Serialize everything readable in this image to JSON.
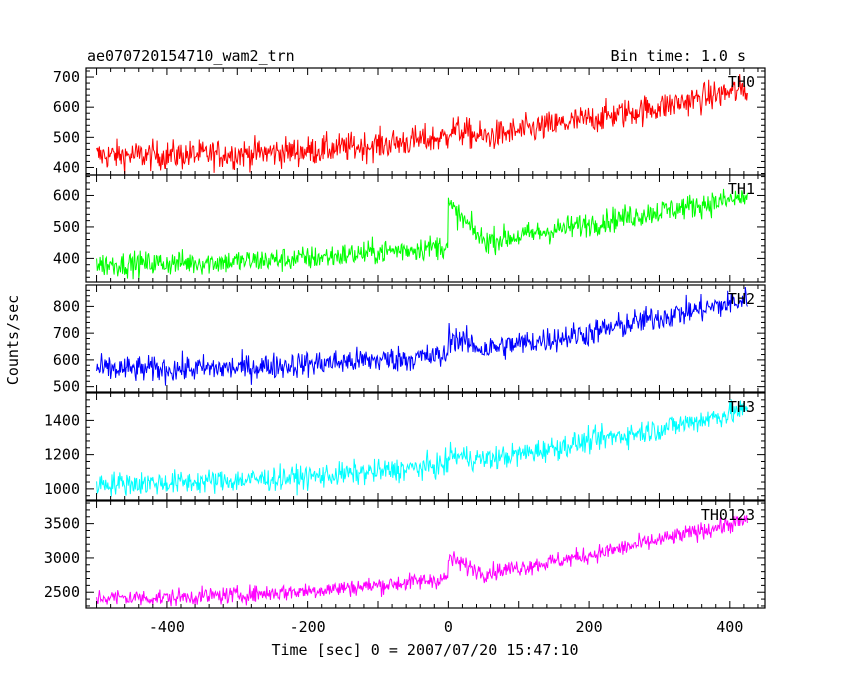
{
  "header": {
    "title": "ae070720154710_wam2_trn",
    "bin_time": "Bin time: 1.0 s"
  },
  "chart_data": {
    "type": "line",
    "title": "ae070720154710_wam2_trn",
    "xlabel": "Time [sec] 0 = 2007/07/20 15:47:10",
    "ylabel": "Counts/sec",
    "xlim": [
      -515,
      450
    ],
    "x_ticks": [
      -400,
      -200,
      0,
      200,
      400
    ],
    "x_data_range": [
      -500,
      425
    ],
    "grid": false,
    "panels": [
      {
        "name": "TH0",
        "color": "#ff0000",
        "ylim": [
          375,
          730
        ],
        "y_ticks": [
          400,
          500,
          600,
          700
        ],
        "trend_x": [
          -500,
          -400,
          -300,
          -200,
          -100,
          -1,
          0,
          50,
          100,
          200,
          300,
          400,
          425
        ],
        "trend_y": [
          440,
          440,
          445,
          455,
          475,
          500,
          530,
          500,
          520,
          560,
          600,
          650,
          660
        ],
        "noise": 35
      },
      {
        "name": "TH1",
        "color": "#00ff00",
        "ylim": [
          325,
          665
        ],
        "y_ticks": [
          400,
          500,
          600
        ],
        "trend_x": [
          -500,
          -400,
          -300,
          -200,
          -100,
          -1,
          0,
          50,
          100,
          200,
          300,
          400,
          425
        ],
        "trend_y": [
          380,
          385,
          390,
          400,
          420,
          440,
          570,
          455,
          470,
          510,
          550,
          585,
          595
        ],
        "noise": 28
      },
      {
        "name": "TH2",
        "color": "#0000ff",
        "ylim": [
          480,
          880
        ],
        "y_ticks": [
          500,
          600,
          700,
          800
        ],
        "trend_x": [
          -500,
          -400,
          -300,
          -200,
          -100,
          -1,
          0,
          50,
          100,
          200,
          300,
          400,
          425
        ],
        "trend_y": [
          565,
          565,
          570,
          585,
          600,
          615,
          690,
          640,
          660,
          700,
          760,
          810,
          825
        ],
        "noise": 35
      },
      {
        "name": "TH3",
        "color": "#00ffff",
        "ylim": [
          935,
          1560
        ],
        "y_ticks": [
          1000,
          1200,
          1400
        ],
        "trend_x": [
          -500,
          -400,
          -300,
          -200,
          -100,
          -1,
          0,
          50,
          100,
          200,
          300,
          400,
          425
        ],
        "trend_y": [
          1030,
          1035,
          1050,
          1070,
          1100,
          1140,
          1200,
          1170,
          1200,
          1280,
          1350,
          1440,
          1460
        ],
        "noise": 50
      },
      {
        "name": "TH0123",
        "color": "#ff00ff",
        "ylim": [
          2270,
          3830
        ],
        "y_ticks": [
          2500,
          3000,
          3500
        ],
        "trend_x": [
          -500,
          -400,
          -300,
          -200,
          -100,
          -1,
          0,
          50,
          100,
          200,
          300,
          400,
          425
        ],
        "trend_y": [
          2420,
          2420,
          2460,
          2520,
          2600,
          2700,
          3000,
          2780,
          2860,
          3040,
          3260,
          3490,
          3540
        ],
        "noise": 90
      }
    ]
  }
}
